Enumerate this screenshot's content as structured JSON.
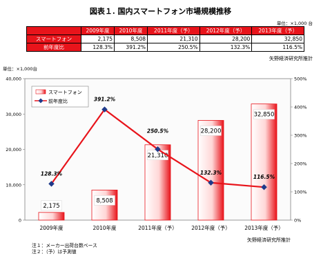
{
  "title": "図表１. 国内スマートフォン市場規模推移",
  "table_unit": "単位：×1,000 台",
  "table": {
    "headers": [
      "2009年度",
      "2010年度",
      "2011年度（予）",
      "2012年度（予）",
      "2013年度（予）"
    ],
    "rows": [
      {
        "label": "スマートフォン",
        "values": [
          "2,175",
          "8,508",
          "21,310",
          "28,200",
          "32,850"
        ]
      },
      {
        "label": "前年度比",
        "values": [
          "128.3%",
          "391.2%",
          "250.5%",
          "132.3%",
          "116.5%"
        ]
      }
    ]
  },
  "source_top": "矢野経済研究所推計",
  "chart_data": {
    "type": "bar",
    "unit_label": "単位：×1,000台",
    "categories": [
      "2009年度",
      "2010年度",
      "2011年度（予）",
      "2012年度（予）",
      "2013年度（予）"
    ],
    "series": [
      {
        "name": "スマートフォン",
        "type": "bar",
        "axis": "left",
        "values": [
          2175,
          8508,
          21310,
          28200,
          32850
        ],
        "labels": [
          "2,175",
          "8,508",
          "21,310",
          "28,200",
          "32,850"
        ]
      },
      {
        "name": "前年度比",
        "type": "line",
        "axis": "right",
        "values": [
          128.3,
          391.2,
          250.5,
          132.3,
          116.5
        ],
        "labels": [
          "128.3%",
          "391.2%",
          "250.5%",
          "132.3%",
          "116.5%"
        ]
      }
    ],
    "ylim": [
      0,
      40000
    ],
    "yticks": [
      "0",
      "10,000",
      "20,000",
      "30,000",
      "40,000"
    ],
    "y2lim": [
      0,
      500
    ],
    "y2ticks": [
      "0%",
      "100%",
      "200%",
      "300%",
      "400%",
      "500%"
    ],
    "legend_position": "top-left",
    "colors": {
      "bar": "#e8141b",
      "line": "#e8141b",
      "marker": "#1f3a8a"
    }
  },
  "source_bottom": "矢野経済研究所推計",
  "notes": [
    "注１：メーカー出荷台数ベース",
    "注２：（予）は予測値"
  ]
}
